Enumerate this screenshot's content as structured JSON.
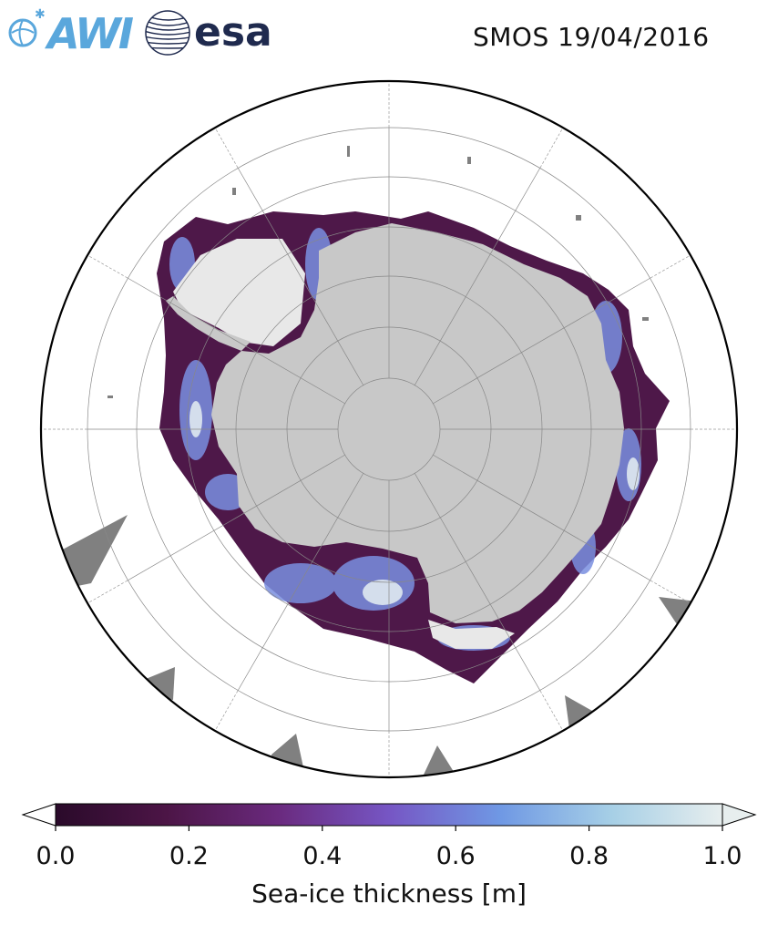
{
  "header": {
    "title": "SMOS 19/04/2016",
    "logo_awi_text": "AWI",
    "logo_esa_text": "esa"
  },
  "map": {
    "projection": "south-polar-stereographic",
    "land_color": "#c8c8c8",
    "ice_shelf_color": "#e8e8e8",
    "other_land_color": "#808080",
    "graticule": {
      "latitude_circles": 6,
      "meridians": 12
    }
  },
  "colorbar": {
    "label": "Sea-ice thickness [m]",
    "min": 0.0,
    "max": 1.0,
    "extend": "both",
    "ticks": [
      {
        "value": 0.0,
        "label": "0.0"
      },
      {
        "value": 0.2,
        "label": "0.2"
      },
      {
        "value": 0.4,
        "label": "0.4"
      },
      {
        "value": 0.6,
        "label": "0.6"
      },
      {
        "value": 0.8,
        "label": "0.8"
      },
      {
        "value": 1.0,
        "label": "1.0"
      }
    ],
    "colors": [
      "#2a0a2a",
      "#4c1546",
      "#6a2a7e",
      "#7656c4",
      "#6f98e4",
      "#a6cfe6",
      "#e7eeee"
    ]
  }
}
